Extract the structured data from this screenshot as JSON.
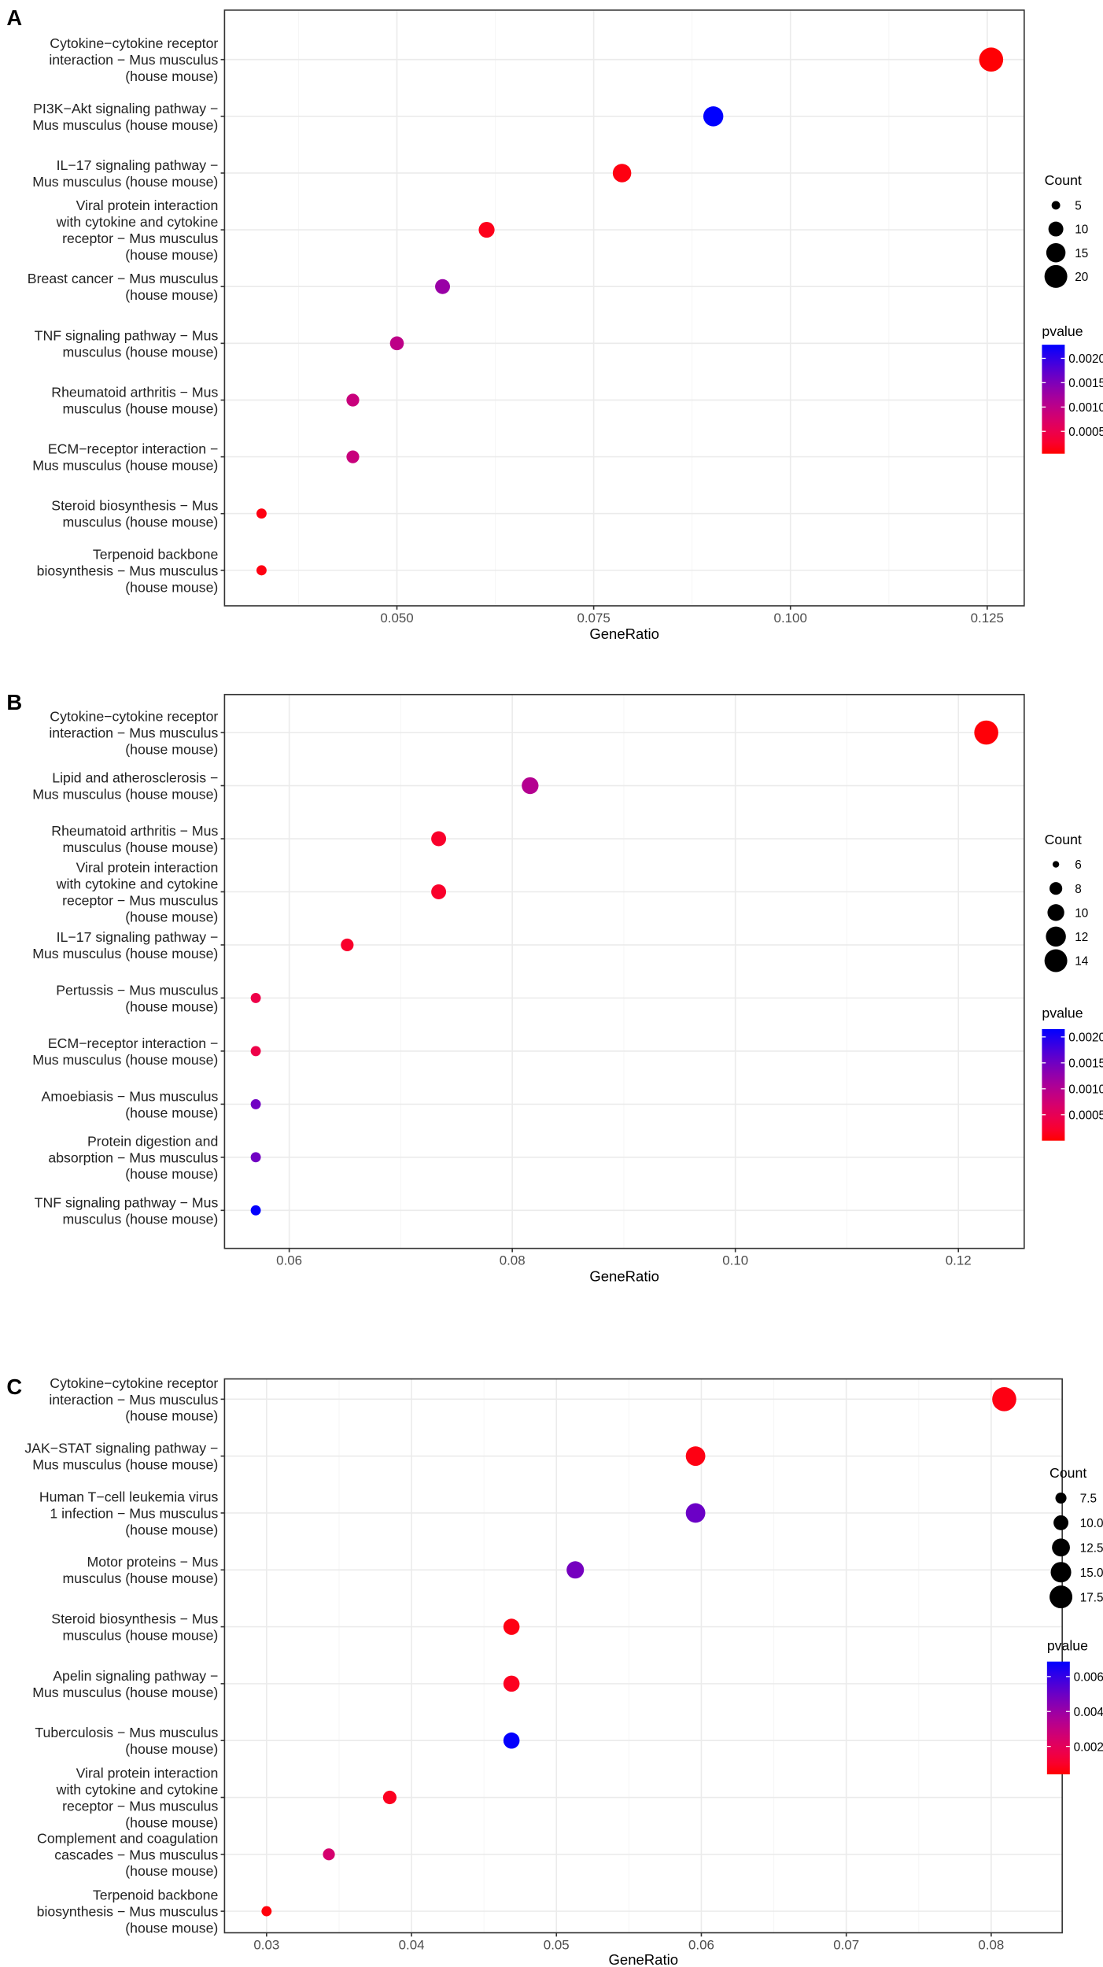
{
  "chart_data": [
    {
      "panel": "A",
      "type": "scatter",
      "xlabel": "GeneRatio",
      "xlim": [
        0.0281,
        0.1297
      ],
      "x_ticks": [
        "0.050",
        "0.075",
        "0.100",
        "0.125"
      ],
      "grid": true,
      "legend_placement": "right",
      "size_legend": {
        "title": "Count",
        "values": [
          5,
          10,
          15,
          20
        ]
      },
      "color_legend": {
        "title": "pvalue",
        "low_color": "#FF0000",
        "high_color": "#0000FF",
        "range": [
          4e-05,
          0.00228
        ],
        "ticks": [
          "0.0020",
          "0.0015",
          "0.0010",
          "0.0005"
        ]
      },
      "terms": [
        {
          "label": [
            "Cytokine−cytokine receptor",
            "interaction − Mus musculus",
            "(house mouse)"
          ],
          "gene_ratio": 0.1255,
          "count": 22,
          "pvalue": 5e-05
        },
        {
          "label": [
            "PI3K−Akt signaling pathway −",
            "Mus musculus (house mouse)"
          ],
          "gene_ratio": 0.0902,
          "count": 16,
          "pvalue": 0.00228
        },
        {
          "label": [
            "IL−17 signaling pathway −",
            "Mus musculus (house mouse)"
          ],
          "gene_ratio": 0.0786,
          "count": 14,
          "pvalue": 0.0001
        },
        {
          "label": [
            "Viral protein interaction",
            "with cytokine and cytokine",
            "receptor − Mus musculus",
            "(house mouse)"
          ],
          "gene_ratio": 0.0614,
          "count": 11,
          "pvalue": 0.00015
        },
        {
          "label": [
            "Breast cancer − Mus musculus",
            "(house mouse)"
          ],
          "gene_ratio": 0.0558,
          "count": 10,
          "pvalue": 0.0013
        },
        {
          "label": [
            "TNF signaling pathway − Mus",
            "musculus (house mouse)"
          ],
          "gene_ratio": 0.05,
          "count": 9,
          "pvalue": 0.001
        },
        {
          "label": [
            "Rheumatoid arthritis − Mus",
            "musculus (house mouse)"
          ],
          "gene_ratio": 0.0444,
          "count": 8,
          "pvalue": 0.0009
        },
        {
          "label": [
            "ECM−receptor interaction −",
            "Mus musculus (house mouse)"
          ],
          "gene_ratio": 0.0444,
          "count": 8,
          "pvalue": 0.0009
        },
        {
          "label": [
            "Steroid biosynthesis − Mus",
            "musculus (house mouse)"
          ],
          "gene_ratio": 0.0328,
          "count": 6,
          "pvalue": 0.0001
        },
        {
          "label": [
            "Terpenoid backbone",
            "biosynthesis − Mus musculus",
            "(house mouse)"
          ],
          "gene_ratio": 0.0328,
          "count": 6,
          "pvalue": 0.0001
        }
      ]
    },
    {
      "panel": "B",
      "type": "scatter",
      "xlabel": "GeneRatio",
      "xlim": [
        0.0542,
        0.1259
      ],
      "x_ticks": [
        "0.06",
        "0.08",
        "0.10",
        "0.12"
      ],
      "grid": true,
      "legend_placement": "right",
      "size_legend": {
        "title": "Count",
        "values": [
          6,
          8,
          10,
          12,
          14
        ]
      },
      "color_legend": {
        "title": "pvalue",
        "low_color": "#FF0000",
        "high_color": "#0000FF",
        "range": [
          0.0,
          0.00215
        ],
        "ticks": [
          "0.0020",
          "0.0015",
          "0.0010",
          "0.0005"
        ]
      },
      "terms": [
        {
          "label": [
            "Cytokine−cytokine receptor",
            "interaction − Mus musculus",
            "(house mouse)"
          ],
          "gene_ratio": 0.1225,
          "count": 15,
          "pvalue": 2e-05
        },
        {
          "label": [
            "Lipid and atherosclerosis −",
            "Mus musculus (house mouse)"
          ],
          "gene_ratio": 0.0816,
          "count": 10,
          "pvalue": 0.001
        },
        {
          "label": [
            "Rheumatoid arthritis − Mus",
            "musculus (house mouse)"
          ],
          "gene_ratio": 0.0734,
          "count": 9,
          "pvalue": 0.0002
        },
        {
          "label": [
            "Viral protein interaction",
            "with cytokine and cytokine",
            "receptor − Mus musculus",
            "(house mouse)"
          ],
          "gene_ratio": 0.0734,
          "count": 9,
          "pvalue": 0.0002
        },
        {
          "label": [
            "IL−17 signaling pathway −",
            "Mus musculus (house mouse)"
          ],
          "gene_ratio": 0.0652,
          "count": 8,
          "pvalue": 0.0002
        },
        {
          "label": [
            "Pertussis − Mus musculus",
            "(house mouse)"
          ],
          "gene_ratio": 0.057,
          "count": 7,
          "pvalue": 0.0004
        },
        {
          "label": [
            "ECM−receptor interaction −",
            "Mus musculus (house mouse)"
          ],
          "gene_ratio": 0.057,
          "count": 7,
          "pvalue": 0.0004
        },
        {
          "label": [
            "Amoebiasis − Mus musculus",
            "(house mouse)"
          ],
          "gene_ratio": 0.057,
          "count": 7,
          "pvalue": 0.0015
        },
        {
          "label": [
            "Protein digestion and",
            "absorption − Mus musculus",
            "(house mouse)"
          ],
          "gene_ratio": 0.057,
          "count": 7,
          "pvalue": 0.0015
        },
        {
          "label": [
            "TNF signaling pathway − Mus",
            "musculus (house mouse)"
          ],
          "gene_ratio": 0.057,
          "count": 7,
          "pvalue": 0.00213
        }
      ]
    },
    {
      "panel": "C",
      "type": "scatter",
      "xlabel": "GeneRatio",
      "xlim": [
        0.0271,
        0.0849
      ],
      "x_ticks": [
        "0.03",
        "0.04",
        "0.05",
        "0.06",
        "0.07",
        "0.08"
      ],
      "grid": true,
      "legend_placement": "right",
      "size_legend": {
        "title": "Count",
        "values": [
          7.5,
          10.0,
          12.5,
          15.0,
          17.5
        ],
        "labels": [
          "7.5",
          "10.0",
          "12.5",
          "15.0",
          "17.5"
        ]
      },
      "color_legend": {
        "title": "pvalue",
        "low_color": "#FF0000",
        "high_color": "#0000FF",
        "range": [
          0.0004,
          0.00686
        ],
        "ticks": [
          "0.006",
          "0.004",
          "0.002"
        ]
      },
      "terms": [
        {
          "label": [
            "Cytokine−cytokine receptor",
            "interaction − Mus musculus",
            "(house mouse)"
          ],
          "gene_ratio": 0.0809,
          "count": 19,
          "pvalue": 0.0006
        },
        {
          "label": [
            "JAK−STAT signaling pathway −",
            "Mus musculus (house mouse)"
          ],
          "gene_ratio": 0.0596,
          "count": 14,
          "pvalue": 0.0006
        },
        {
          "label": [
            "Human T−cell leukemia virus",
            "1 infection − Mus musculus",
            "(house mouse)"
          ],
          "gene_ratio": 0.0596,
          "count": 14,
          "pvalue": 0.005
        },
        {
          "label": [
            "Motor proteins − Mus",
            "musculus (house mouse)"
          ],
          "gene_ratio": 0.0513,
          "count": 12,
          "pvalue": 0.0048
        },
        {
          "label": [
            "Steroid biosynthesis − Mus",
            "musculus (house mouse)"
          ],
          "gene_ratio": 0.0469,
          "count": 11,
          "pvalue": 0.0006
        },
        {
          "label": [
            "Apelin signaling pathway −",
            "Mus musculus (house mouse)"
          ],
          "gene_ratio": 0.0469,
          "count": 11,
          "pvalue": 0.0008
        },
        {
          "label": [
            "Tuberculosis − Mus musculus",
            "(house mouse)"
          ],
          "gene_ratio": 0.0469,
          "count": 11,
          "pvalue": 0.0068
        },
        {
          "label": [
            "Viral protein interaction",
            "with cytokine and cytokine",
            "receptor − Mus musculus",
            "(house mouse)"
          ],
          "gene_ratio": 0.0385,
          "count": 9,
          "pvalue": 0.0008
        },
        {
          "label": [
            "Complement and coagulation",
            "cascades − Mus musculus",
            "(house mouse)"
          ],
          "gene_ratio": 0.0343,
          "count": 8,
          "pvalue": 0.0025
        },
        {
          "label": [
            "Terpenoid backbone",
            "biosynthesis − Mus musculus",
            "(house mouse)"
          ],
          "gene_ratio": 0.03,
          "count": 7,
          "pvalue": 0.0005
        }
      ]
    }
  ]
}
